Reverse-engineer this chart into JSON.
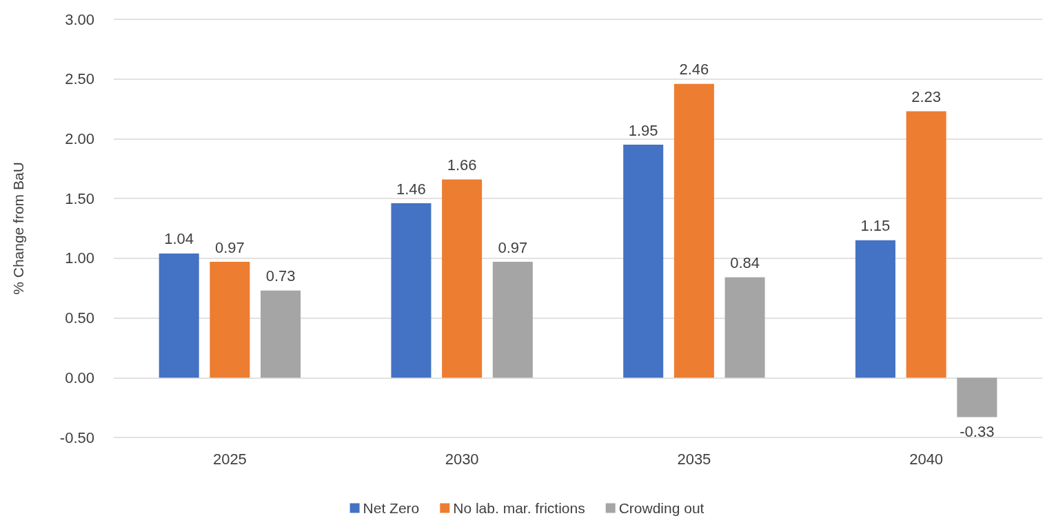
{
  "chart_data": {
    "type": "bar",
    "ylabel": "% Change from BaU",
    "categories": [
      "2025",
      "2030",
      "2035",
      "2040"
    ],
    "series": [
      {
        "name": "Net Zero",
        "color": "#4472c4",
        "values": [
          1.04,
          1.46,
          1.95,
          1.15
        ]
      },
      {
        "name": "No lab. mar. frictions",
        "color": "#ed7d31",
        "values": [
          0.97,
          1.66,
          2.46,
          2.23
        ]
      },
      {
        "name": "Crowding out",
        "color": "#a5a5a5",
        "values": [
          0.73,
          0.97,
          0.84,
          -0.33
        ]
      }
    ],
    "ylim": [
      -0.5,
      3
    ],
    "yticks": [
      {
        "value": -0.5,
        "label": "-0.50"
      },
      {
        "value": 0,
        "label": "0.00"
      },
      {
        "value": 0.5,
        "label": "0.50"
      },
      {
        "value": 1,
        "label": "1.00"
      },
      {
        "value": 1.5,
        "label": "1.50"
      },
      {
        "value": 2,
        "label": "2.00"
      },
      {
        "value": 2.5,
        "label": "2.50"
      },
      {
        "value": 3,
        "label": "3.00"
      }
    ],
    "grid": "y",
    "legend": "bottom",
    "data_labels": true
  }
}
